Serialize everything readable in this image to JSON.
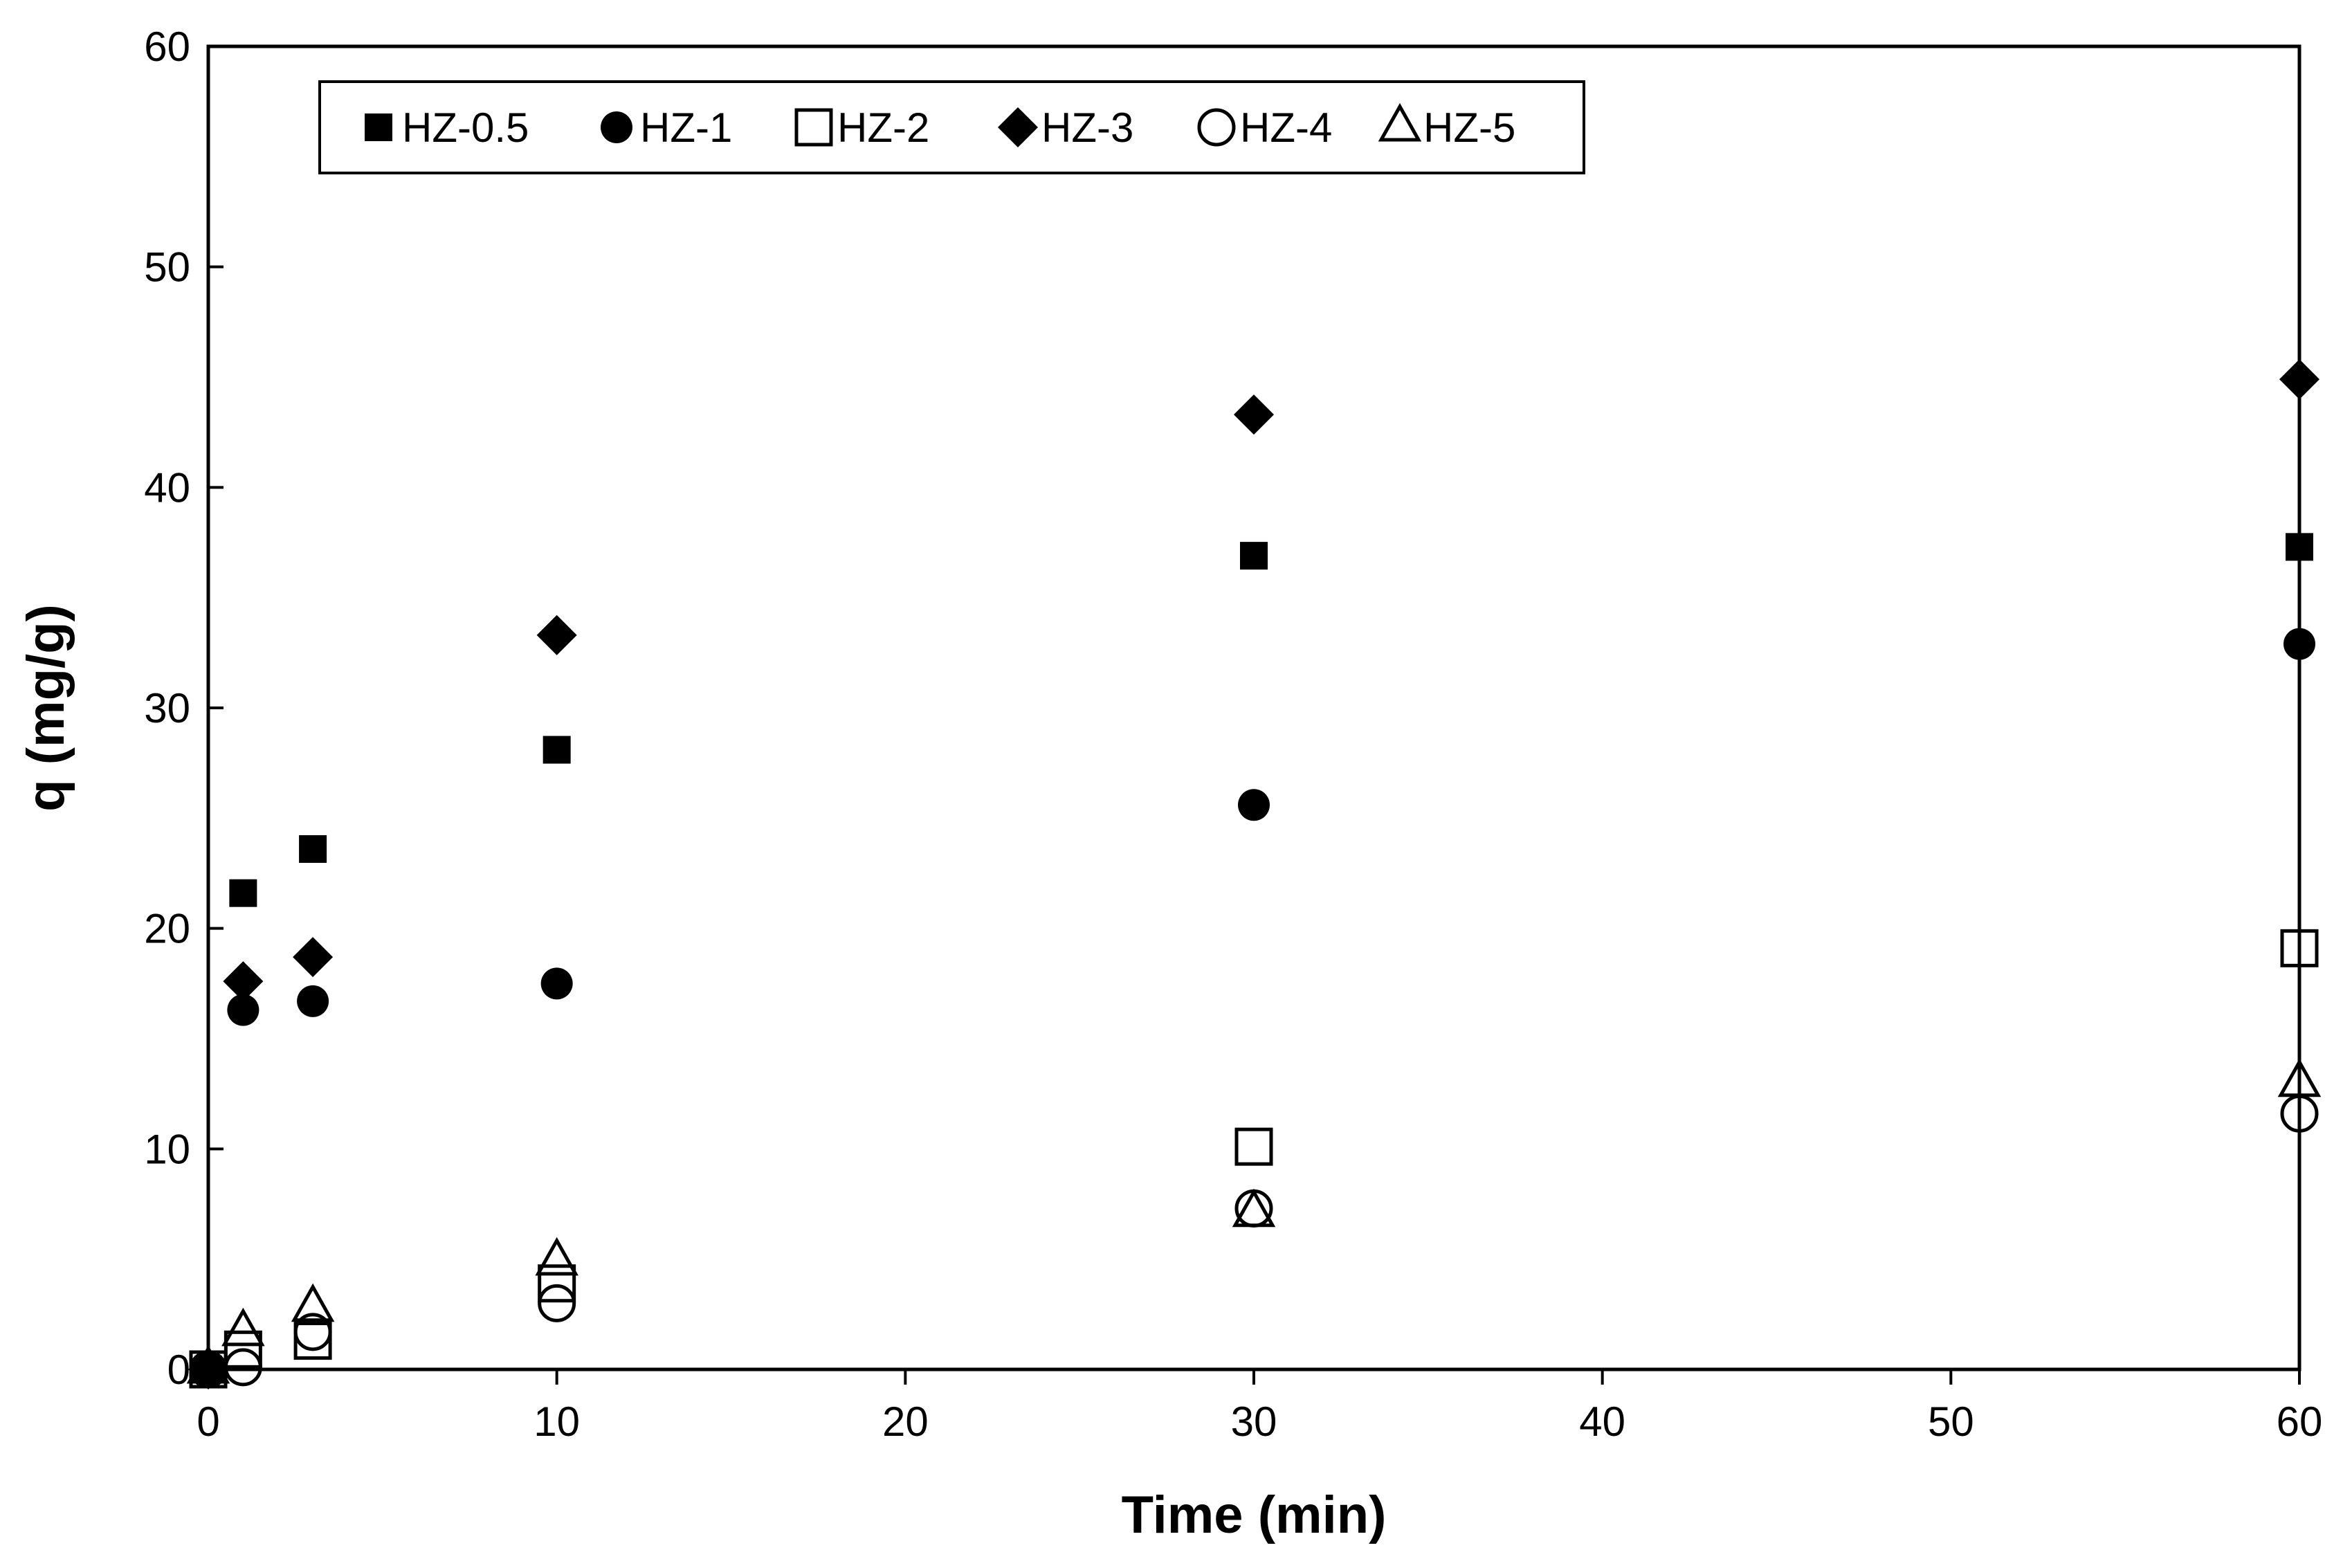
{
  "chart_data": {
    "type": "scatter",
    "title": "",
    "xlabel": "Time (min)",
    "ylabel": "q (mg/g)",
    "xlim": [
      0,
      60
    ],
    "ylim": [
      0,
      60
    ],
    "xticks": [
      "0",
      "10",
      "20",
      "30",
      "40",
      "50",
      "60"
    ],
    "yticks": [
      "0",
      "10",
      "20",
      "30",
      "40",
      "50",
      "60"
    ],
    "grid": false,
    "legend_position": "top-left",
    "x": [
      0,
      1,
      3,
      10,
      30,
      60
    ],
    "series": [
      {
        "name": "HZ-0.5",
        "marker": "square-filled",
        "values": [
          0,
          21.6,
          23.6,
          28.1,
          36.9,
          37.3
        ]
      },
      {
        "name": "HZ-1",
        "marker": "circle-filled",
        "values": [
          0,
          16.3,
          16.7,
          17.5,
          25.6,
          32.9
        ]
      },
      {
        "name": "HZ-2",
        "marker": "square-open",
        "values": [
          0,
          0.9,
          1.3,
          3.9,
          10.1,
          19.1
        ]
      },
      {
        "name": "HZ-3",
        "marker": "diamond-filled",
        "values": [
          0,
          17.6,
          18.7,
          33.3,
          43.3,
          44.9
        ]
      },
      {
        "name": "HZ-4",
        "marker": "circle-open",
        "values": [
          0,
          0.1,
          1.7,
          3.0,
          7.3,
          11.6
        ]
      },
      {
        "name": "HZ-5",
        "marker": "triangle-open",
        "values": [
          0,
          1.7,
          2.8,
          4.9,
          7.1,
          13.0
        ]
      }
    ]
  }
}
